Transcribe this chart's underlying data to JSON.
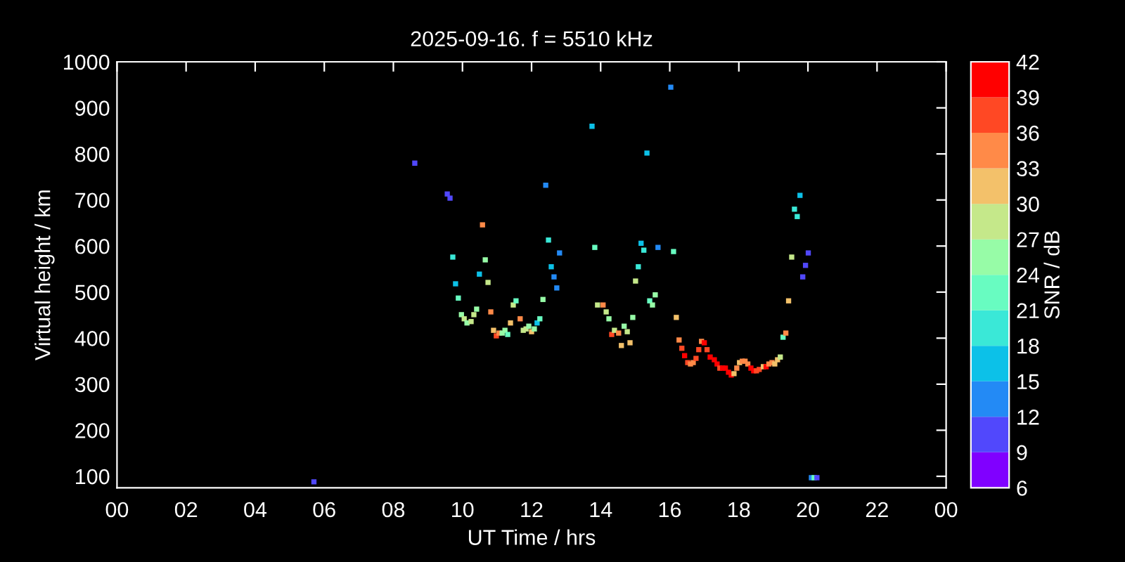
{
  "chart_data": {
    "type": "scatter",
    "title": "2025-09-16. f = 5510 kHz",
    "xlabel": "UT Time / hrs",
    "ylabel": "Virtual height / km",
    "clabel": "SNR / dB",
    "marker": "square",
    "grid": false,
    "xlim": [
      0,
      24
    ],
    "xticks": [
      {
        "value": 0,
        "label": "00"
      },
      {
        "value": 2,
        "label": "02"
      },
      {
        "value": 4,
        "label": "04"
      },
      {
        "value": 6,
        "label": "06"
      },
      {
        "value": 8,
        "label": "08"
      },
      {
        "value": 10,
        "label": "10"
      },
      {
        "value": 12,
        "label": "12"
      },
      {
        "value": 14,
        "label": "14"
      },
      {
        "value": 16,
        "label": "16"
      },
      {
        "value": 18,
        "label": "18"
      },
      {
        "value": 20,
        "label": "20"
      },
      {
        "value": 22,
        "label": "22"
      },
      {
        "value": 24,
        "label": "00"
      }
    ],
    "ylim": [
      75,
      1000
    ],
    "yticks": [
      100,
      200,
      300,
      400,
      500,
      600,
      700,
      800,
      900,
      1000
    ],
    "clim": [
      6,
      42
    ],
    "cticks": [
      6,
      9,
      12,
      15,
      18,
      21,
      24,
      27,
      30,
      33,
      36,
      39,
      42
    ],
    "x": [
      5.7,
      8.62,
      9.56,
      9.64,
      9.72,
      9.8,
      9.88,
      9.97,
      10.05,
      10.13,
      10.25,
      10.33,
      10.41,
      10.49,
      10.58,
      10.66,
      10.74,
      10.82,
      10.9,
      10.98,
      11.06,
      11.15,
      11.23,
      11.31,
      11.39,
      11.47,
      11.55,
      11.67,
      11.76,
      11.84,
      11.92,
      12.0,
      12.08,
      12.16,
      12.24,
      12.33,
      12.41,
      12.49,
      12.57,
      12.65,
      12.73,
      12.81,
      13.75,
      13.83,
      13.91,
      14.07,
      14.16,
      14.24,
      14.32,
      14.4,
      14.52,
      14.6,
      14.68,
      14.77,
      14.85,
      14.93,
      15.01,
      15.09,
      15.17,
      15.25,
      15.34,
      15.42,
      15.5,
      15.58,
      15.66,
      16.03,
      16.11,
      16.19,
      16.27,
      16.35,
      16.43,
      16.52,
      16.6,
      16.68,
      16.76,
      16.84,
      16.92,
      17.0,
      17.08,
      17.17,
      17.29,
      17.37,
      17.45,
      17.53,
      17.61,
      17.7,
      17.78,
      17.86,
      17.94,
      18.02,
      18.1,
      18.18,
      18.26,
      18.35,
      18.43,
      18.51,
      18.59,
      18.71,
      18.79,
      18.87,
      18.96,
      19.04,
      19.12,
      19.2,
      19.28,
      19.36,
      19.44,
      19.53,
      19.61,
      19.69,
      19.77,
      19.85,
      19.93,
      20.01,
      20.1,
      20.18,
      20.26
    ],
    "values": [
      88,
      780,
      713,
      704,
      576,
      518,
      487,
      451,
      442,
      433,
      436,
      451,
      463,
      539,
      646,
      570,
      521,
      457,
      417,
      405,
      411,
      411,
      417,
      408,
      433,
      472,
      481,
      442,
      417,
      420,
      426,
      414,
      420,
      433,
      442,
      484,
      732,
      613,
      555,
      533,
      509,
      585,
      860,
      597,
      472,
      472,
      457,
      442,
      408,
      417,
      411,
      384,
      426,
      414,
      390,
      445,
      524,
      555,
      606,
      591,
      802,
      481,
      472,
      494,
      597,
      945,
      588,
      445,
      396,
      378,
      362,
      347,
      344,
      347,
      356,
      375,
      393,
      390,
      375,
      359,
      353,
      344,
      335,
      335,
      335,
      326,
      320,
      323,
      335,
      347,
      350,
      350,
      344,
      335,
      329,
      329,
      332,
      338,
      338,
      344,
      347,
      344,
      353,
      359,
      402,
      411,
      481,
      576,
      680,
      664,
      710,
      533,
      558,
      585,
      97,
      97,
      97
    ],
    "cvalues": [
      10.5,
      10.5,
      10.5,
      10.5,
      19.5,
      16.5,
      22.5,
      25.5,
      28.5,
      25.5,
      28.5,
      28.5,
      25.5,
      16.5,
      34.5,
      25.5,
      28.5,
      34.5,
      31.5,
      37.5,
      34.5,
      25.5,
      25.5,
      22.5,
      31.5,
      28.5,
      22.5,
      34.5,
      28.5,
      28.5,
      25.5,
      31.5,
      25.5,
      16.5,
      22.5,
      25.5,
      13.5,
      19.5,
      16.5,
      13.5,
      13.5,
      13.5,
      16.5,
      22.5,
      28.5,
      34.5,
      28.5,
      25.5,
      37.5,
      28.5,
      34.5,
      31.5,
      25.5,
      28.5,
      31.5,
      25.5,
      28.5,
      19.5,
      16.5,
      19.5,
      16.5,
      22.5,
      25.5,
      25.5,
      13.5,
      13.5,
      22.5,
      31.5,
      34.5,
      37.5,
      40.5,
      37.5,
      34.5,
      34.5,
      37.5,
      37.5,
      34.5,
      40.5,
      37.5,
      40.5,
      40.5,
      40.5,
      37.5,
      40.5,
      40.5,
      40.5,
      40.5,
      31.5,
      34.5,
      31.5,
      34.5,
      34.5,
      34.5,
      40.5,
      40.5,
      37.5,
      37.5,
      31.5,
      40.5,
      34.5,
      34.5,
      31.5,
      31.5,
      28.5,
      22.5,
      34.5,
      31.5,
      28.5,
      19.5,
      19.5,
      16.5,
      10.5,
      10.5,
      10.5,
      13.5,
      22.5,
      10.5
    ]
  }
}
